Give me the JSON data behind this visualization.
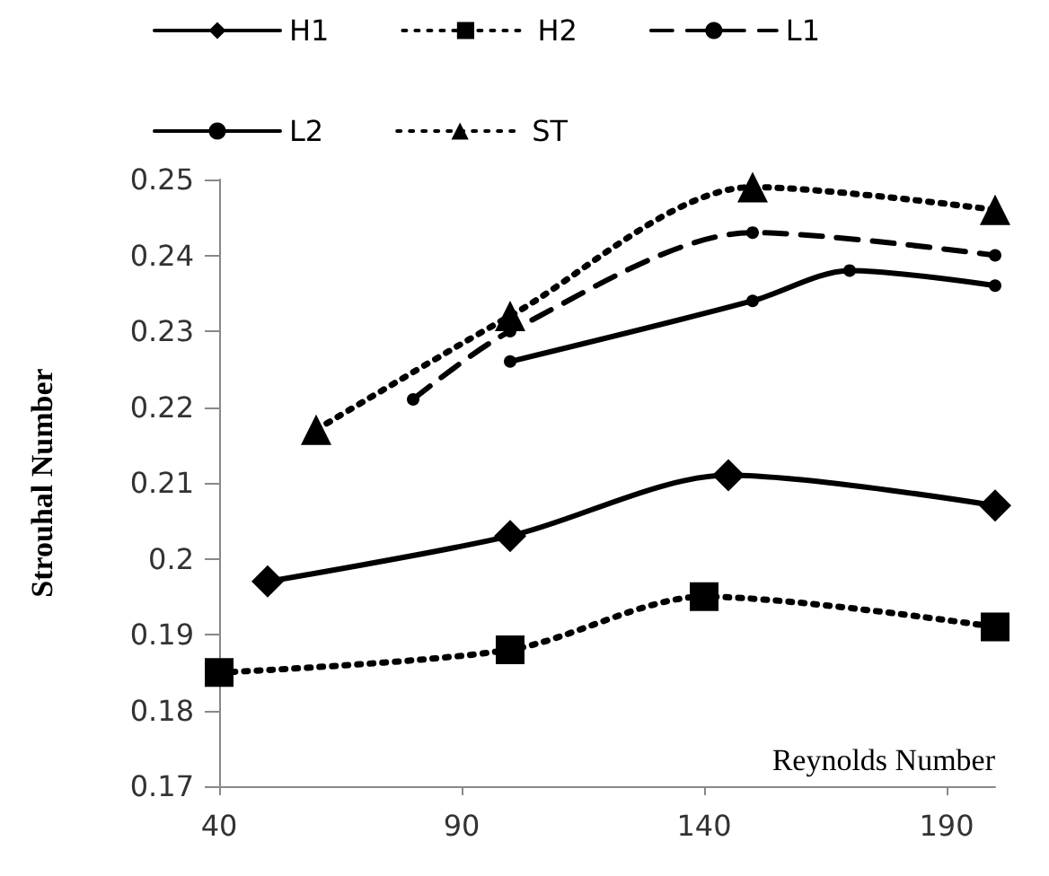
{
  "chart_data": {
    "type": "line",
    "xlabel": "Reynolds Number",
    "ylabel": "Strouhal Number",
    "xlim": [
      40,
      200
    ],
    "xticks": [
      40,
      90,
      140,
      190
    ],
    "ylim": [
      0.17,
      0.25
    ],
    "yticks": [
      0.17,
      0.18,
      0.19,
      0.2,
      0.21,
      0.22,
      0.23,
      0.24,
      0.25
    ],
    "grid": false,
    "legend": "top",
    "series": [
      {
        "name": "H1",
        "color": "#000000",
        "marker": "diamond",
        "line_style": "solid",
        "x": [
          50,
          100,
          145,
          200
        ],
        "values": [
          0.197,
          0.203,
          0.211,
          0.207
        ]
      },
      {
        "name": "H2",
        "color": "#000000",
        "marker": "square",
        "line_style": "dotted",
        "x": [
          40,
          100,
          140,
          200
        ],
        "values": [
          0.185,
          0.188,
          0.195,
          0.191
        ]
      },
      {
        "name": "L1",
        "color": "#000000",
        "marker": "circle",
        "line_style": "dashed",
        "x": [
          80,
          100,
          150,
          200
        ],
        "values": [
          0.221,
          0.23,
          0.243,
          0.24
        ]
      },
      {
        "name": "L2",
        "color": "#000000",
        "marker": "circle",
        "line_style": "solid",
        "x": [
          100,
          150,
          170,
          200
        ],
        "values": [
          0.226,
          0.234,
          0.238,
          0.236
        ]
      },
      {
        "name": "ST",
        "color": "#000000",
        "marker": "triangle",
        "line_style": "dotted",
        "x": [
          60,
          100,
          150,
          200
        ],
        "values": [
          0.217,
          0.232,
          0.249,
          0.246
        ]
      }
    ]
  }
}
